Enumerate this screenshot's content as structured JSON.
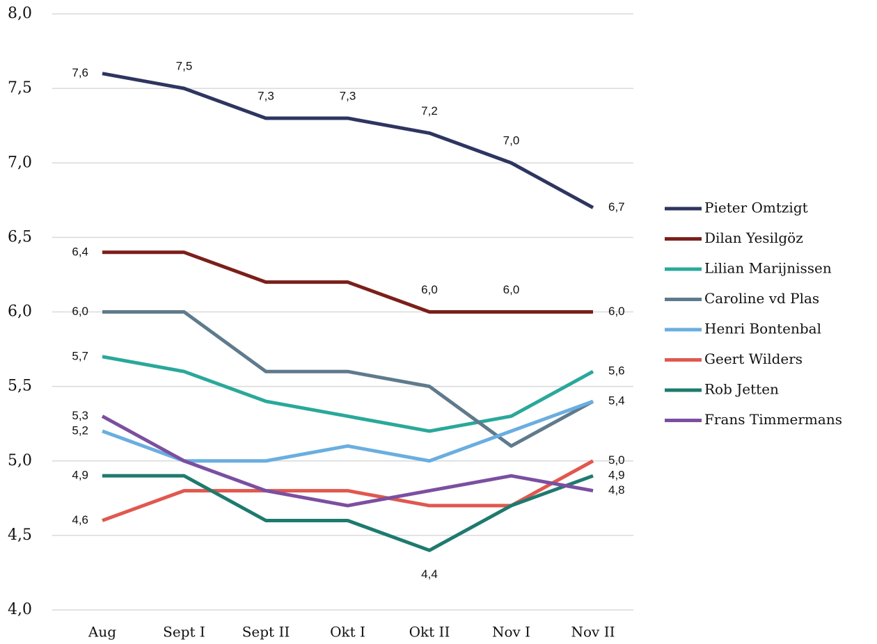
{
  "chart_data": {
    "type": "line",
    "categories": [
      "Aug",
      "Sept I",
      "Sept II",
      "Okt I",
      "Okt II",
      "Nov I",
      "Nov II"
    ],
    "ylim": [
      4.0,
      8.0
    ],
    "yticks": [
      {
        "value": 4.0,
        "label": "4,0"
      },
      {
        "value": 4.5,
        "label": "4,5"
      },
      {
        "value": 5.0,
        "label": "5,0"
      },
      {
        "value": 5.5,
        "label": "5,5"
      },
      {
        "value": 6.0,
        "label": "6,0"
      },
      {
        "value": 6.5,
        "label": "6,5"
      },
      {
        "value": 7.0,
        "label": "7,0"
      },
      {
        "value": 7.5,
        "label": "7,5"
      },
      {
        "value": 8.0,
        "label": "8,0"
      }
    ],
    "grid": true,
    "legend": "right",
    "series": [
      {
        "name": "Pieter Omtzigt",
        "color": "#2e3560",
        "values": [
          7.6,
          7.5,
          7.3,
          7.3,
          7.2,
          7.0,
          6.7
        ],
        "value_labels": [
          "7,6",
          "7,5",
          "7,3",
          "7,3",
          "7,2",
          "7,0",
          "6,7"
        ]
      },
      {
        "name": "Dilan Yesilgöz",
        "color": "#7b1f1a",
        "values": [
          6.4,
          6.4,
          6.2,
          6.2,
          6.0,
          6.0,
          6.0
        ],
        "value_labels": [
          "6,4",
          null,
          null,
          null,
          "6,0",
          "6,0",
          "6,0"
        ]
      },
      {
        "name": "Lilian Marijnissen",
        "color": "#2aa89a",
        "values": [
          5.7,
          5.6,
          5.4,
          5.3,
          5.2,
          5.3,
          5.6
        ],
        "value_labels": [
          "5,7",
          null,
          null,
          null,
          null,
          null,
          "5,6"
        ]
      },
      {
        "name": "Caroline vd Plas",
        "color": "#5f7a8c",
        "values": [
          6.0,
          6.0,
          5.6,
          5.6,
          5.5,
          5.1,
          5.4
        ],
        "value_labels": [
          "6,0",
          null,
          null,
          null,
          null,
          null,
          null
        ]
      },
      {
        "name": "Henri Bontenbal",
        "color": "#6aaee0",
        "values": [
          5.2,
          5.0,
          5.0,
          5.1,
          5.0,
          5.2,
          5.4
        ],
        "value_labels": [
          "5,2",
          null,
          null,
          null,
          null,
          null,
          "5,4"
        ]
      },
      {
        "name": "Geert Wilders",
        "color": "#e0584f",
        "values": [
          4.6,
          4.8,
          4.8,
          4.8,
          4.7,
          4.7,
          5.0
        ],
        "value_labels": [
          "4,6",
          null,
          null,
          null,
          null,
          null,
          "5,0"
        ]
      },
      {
        "name": "Rob Jetten",
        "color": "#1e7a6e",
        "values": [
          4.9,
          4.9,
          4.6,
          4.6,
          4.4,
          4.7,
          4.9
        ],
        "value_labels": [
          "4,9",
          null,
          null,
          null,
          "4,4",
          null,
          "4,9"
        ]
      },
      {
        "name": "Frans Timmermans",
        "color": "#7b4fa0",
        "values": [
          5.3,
          5.0,
          4.8,
          4.7,
          4.8,
          4.9,
          4.8
        ],
        "value_labels": [
          "5,3",
          null,
          null,
          null,
          null,
          null,
          "4,8"
        ]
      }
    ]
  }
}
